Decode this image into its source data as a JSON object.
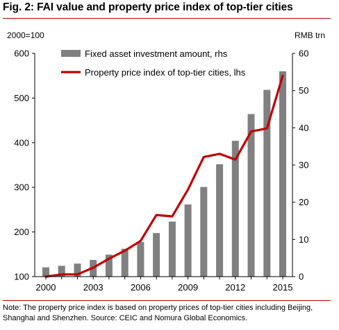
{
  "figure": {
    "title": "Fig. 2: FAI value and property price index of top-tier cities",
    "left_unit": "2000=100",
    "right_unit": "RMB trn",
    "footnote": "Note: The property price index is based on property prices of top-tier cities including Beijing, Shanghai and Shenzhen. Source: CEIC and Nomura Global Economics."
  },
  "colors": {
    "bar": "#808080",
    "line": "#c00000",
    "rule": "#c00000",
    "axis": "#000000"
  },
  "chart_data": {
    "type": "bar+line",
    "x": [
      2000,
      2001,
      2002,
      2003,
      2004,
      2005,
      2006,
      2007,
      2008,
      2009,
      2010,
      2011,
      2012,
      2013,
      2014,
      2015
    ],
    "x_tick_labels": [
      "2000",
      "2003",
      "2006",
      "2009",
      "2012",
      "2015"
    ],
    "left_axis": {
      "label": "2000=100",
      "ylim": [
        100,
        600
      ],
      "ticks": [
        "100",
        "200",
        "300",
        "400",
        "500",
        "600"
      ]
    },
    "right_axis": {
      "label": "RMB trn",
      "ylim": [
        0,
        60
      ],
      "ticks": [
        "0",
        "10",
        "20",
        "30",
        "40",
        "50",
        "60"
      ]
    },
    "series": [
      {
        "name": "Fixed asset investment amount, rhs",
        "kind": "bar",
        "axis": "right",
        "values": [
          2.5,
          2.9,
          3.5,
          4.5,
          5.9,
          7.5,
          9.3,
          11.7,
          14.8,
          19.4,
          24.1,
          30.2,
          36.5,
          43.7,
          50.2,
          55.2
        ]
      },
      {
        "name": "Property price index of top-tier cities, lhs",
        "kind": "line",
        "axis": "left",
        "values": [
          100,
          105,
          105,
          120,
          140,
          158,
          180,
          238,
          235,
          295,
          368,
          375,
          362,
          425,
          432,
          550
        ]
      }
    ],
    "grid": false,
    "legend_position": "top-left"
  }
}
